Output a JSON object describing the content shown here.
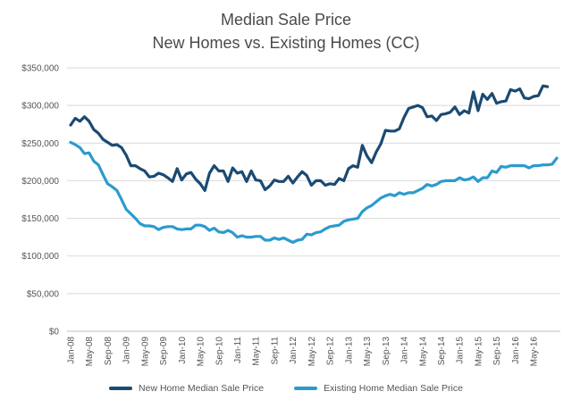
{
  "chart_data": {
    "type": "line",
    "title": "Median Sale Price",
    "subtitle": "New Homes vs. Existing Homes (CC)",
    "xlabel": "",
    "ylabel": "",
    "ylim": [
      0,
      350000
    ],
    "yticks": [
      "$0",
      "$50,000",
      "$100,000",
      "$150,000",
      "$200,000",
      "$250,000",
      "$300,000",
      "$350,000"
    ],
    "xticks": [
      "Jan-08",
      "May-08",
      "Sep-08",
      "Jan-09",
      "May-09",
      "Sep-09",
      "Jan-10",
      "May-10",
      "Sep-10",
      "Jan-11",
      "May-11",
      "Sep-11",
      "Jan-12",
      "May-12",
      "Sep-12",
      "Jan-13",
      "May-13",
      "Sep-13",
      "Jan-14",
      "May-14",
      "Sep-14",
      "Jan-15",
      "May-15",
      "Sep-15",
      "Jan-16",
      "May-16"
    ],
    "grid": true,
    "legend_position": "bottom",
    "series": [
      {
        "name": "New Home Median Sale Price",
        "color": "#1b4a72",
        "values": [
          274000,
          283000,
          279000,
          285000,
          279000,
          268000,
          263000,
          255000,
          251000,
          247000,
          248000,
          244000,
          234000,
          220000,
          220000,
          216000,
          213000,
          205000,
          206000,
          210000,
          208000,
          204000,
          199000,
          216000,
          201000,
          209000,
          211000,
          202000,
          196000,
          187000,
          210000,
          220000,
          213000,
          213000,
          199000,
          217000,
          210000,
          212000,
          199000,
          213000,
          201000,
          200000,
          188000,
          193000,
          201000,
          199000,
          199000,
          206000,
          197000,
          205000,
          212000,
          207000,
          194000,
          200000,
          200000,
          194000,
          196000,
          195000,
          203000,
          200000,
          216000,
          220000,
          218000,
          247000,
          233000,
          224000,
          238000,
          249000,
          267000,
          266000,
          266000,
          269000,
          284000,
          296000,
          298000,
          300000,
          297000,
          285000,
          286000,
          280000,
          288000,
          289000,
          291000,
          298000,
          288000,
          293000,
          290000,
          318000,
          293000,
          315000,
          308000,
          316000,
          303000,
          305000,
          306000,
          321000,
          319000,
          322000,
          310000,
          309000,
          312000,
          313000,
          326000,
          325000
        ]
      },
      {
        "name": "Existing Home Median Sale Price",
        "color": "#2b9bcf",
        "values": [
          251000,
          248000,
          244000,
          236000,
          237000,
          226000,
          221000,
          208000,
          196000,
          192000,
          187000,
          175000,
          162000,
          156000,
          150000,
          143000,
          140000,
          140000,
          139000,
          135000,
          138000,
          139000,
          139000,
          136000,
          135000,
          136000,
          136000,
          141000,
          141000,
          139000,
          134000,
          137000,
          132000,
          131000,
          134000,
          131000,
          125000,
          127000,
          125000,
          125000,
          126000,
          126000,
          121000,
          121000,
          124000,
          122000,
          124000,
          121000,
          118000,
          121000,
          122000,
          129000,
          128000,
          131000,
          132000,
          136000,
          139000,
          140000,
          141000,
          146000,
          148000,
          149000,
          150000,
          159000,
          164000,
          167000,
          172000,
          177000,
          180000,
          182000,
          180000,
          184000,
          182000,
          184000,
          184000,
          187000,
          190000,
          195000,
          193000,
          195000,
          199000,
          200000,
          200000,
          200000,
          204000,
          201000,
          202000,
          205000,
          199000,
          204000,
          204000,
          213000,
          211000,
          219000,
          218000,
          220000,
          220000,
          220000,
          220000,
          217000,
          220000,
          220000,
          221000,
          221000,
          222000,
          230000
        ]
      }
    ]
  }
}
